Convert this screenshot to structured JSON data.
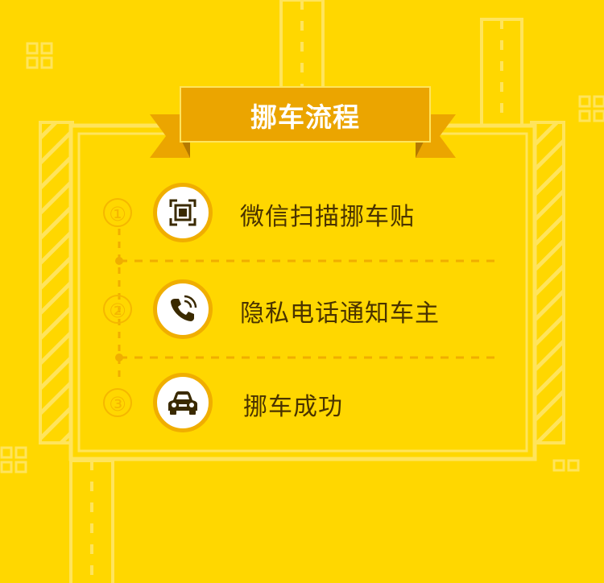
{
  "banner": {
    "title": "挪车流程"
  },
  "steps": [
    {
      "number": "①",
      "icon": "qr-scan-icon",
      "label": "微信扫描挪车贴"
    },
    {
      "number": "②",
      "icon": "phone-icon",
      "label": "隐私电话通知车主"
    },
    {
      "number": "③",
      "icon": "car-icon",
      "label": "挪车成功"
    }
  ],
  "colors": {
    "background": "#FFD700",
    "banner": "#EBA500",
    "accent": "#F5B700",
    "icon": "#3a2a00",
    "text": "#4a3300"
  }
}
